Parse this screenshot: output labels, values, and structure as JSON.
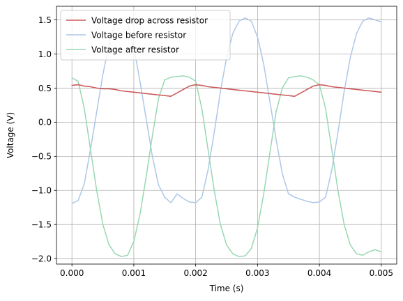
{
  "chart_data": {
    "type": "line",
    "xlabel": "Time (s)",
    "ylabel": "Voltage (V)",
    "xlim": [
      -0.00025,
      0.00525
    ],
    "ylim": [
      -2.08,
      1.7
    ],
    "xticks": [
      0.0,
      0.001,
      0.002,
      0.003,
      0.004,
      0.005
    ],
    "xtick_labels": [
      "0.000",
      "0.001",
      "0.002",
      "0.003",
      "0.004",
      "0.005"
    ],
    "yticks": [
      -2.0,
      -1.5,
      -1.0,
      -0.5,
      0.0,
      0.5,
      1.0,
      1.5
    ],
    "ytick_labels": [
      "−2.0",
      "−1.5",
      "−1.0",
      "−0.5",
      "0.0",
      "0.5",
      "1.0",
      "1.5"
    ],
    "grid": true,
    "legend_position": "upper-left",
    "series": [
      {
        "name": "Voltage drop across resistor",
        "color": "#cd5c5c",
        "x": [
          0.0,
          0.0001,
          0.0002,
          0.0003,
          0.0004,
          0.0005,
          0.0006,
          0.0007,
          0.0008,
          0.0009,
          0.001,
          0.0011,
          0.0012,
          0.0013,
          0.0014,
          0.0015,
          0.0016,
          0.0017,
          0.0018,
          0.0019,
          0.002,
          0.0021,
          0.0022,
          0.0023,
          0.0024,
          0.0025,
          0.0026,
          0.0027,
          0.0028,
          0.0029,
          0.003,
          0.0031,
          0.0032,
          0.0033,
          0.0034,
          0.0035,
          0.0036,
          0.0037,
          0.0038,
          0.0039,
          0.004,
          0.0041,
          0.0042,
          0.0043,
          0.0044,
          0.0045,
          0.0046,
          0.0047,
          0.0048,
          0.0049,
          0.005
        ],
        "y": [
          0.54,
          0.55,
          0.53,
          0.52,
          0.5,
          0.49,
          0.49,
          0.48,
          0.46,
          0.45,
          0.44,
          0.43,
          0.42,
          0.41,
          0.4,
          0.39,
          0.38,
          0.43,
          0.48,
          0.53,
          0.55,
          0.54,
          0.52,
          0.51,
          0.5,
          0.49,
          0.48,
          0.47,
          0.46,
          0.45,
          0.44,
          0.43,
          0.42,
          0.41,
          0.4,
          0.39,
          0.38,
          0.43,
          0.48,
          0.53,
          0.55,
          0.54,
          0.52,
          0.51,
          0.5,
          0.49,
          0.48,
          0.47,
          0.46,
          0.45,
          0.44
        ]
      },
      {
        "name": "Voltage before resistor",
        "color": "#aec7e8",
        "x": [
          0.0,
          0.0001,
          0.0002,
          0.0003,
          0.0004,
          0.0005,
          0.0006,
          0.0007,
          0.0008,
          0.0009,
          0.001,
          0.0011,
          0.0012,
          0.0013,
          0.0014,
          0.0015,
          0.0016,
          0.0017,
          0.0018,
          0.0019,
          0.002,
          0.0021,
          0.0022,
          0.0023,
          0.0024,
          0.0025,
          0.0026,
          0.0027,
          0.0028,
          0.0029,
          0.003,
          0.0031,
          0.0032,
          0.0033,
          0.0034,
          0.0035,
          0.0036,
          0.0037,
          0.0038,
          0.0039,
          0.004,
          0.0041,
          0.0042,
          0.0043,
          0.0044,
          0.0045,
          0.0046,
          0.0047,
          0.0048,
          0.0049,
          0.005
        ],
        "y": [
          -1.19,
          -1.15,
          -0.9,
          -0.4,
          0.15,
          0.7,
          1.15,
          1.45,
          1.53,
          1.45,
          1.1,
          0.6,
          0.05,
          -0.5,
          -0.92,
          -1.1,
          -1.18,
          -1.05,
          -1.12,
          -1.17,
          -1.18,
          -1.1,
          -0.7,
          -0.15,
          0.45,
          0.95,
          1.3,
          1.48,
          1.53,
          1.48,
          1.25,
          0.85,
          0.3,
          -0.25,
          -0.75,
          -1.05,
          -1.1,
          -1.13,
          -1.16,
          -1.18,
          -1.17,
          -1.1,
          -0.7,
          -0.15,
          0.45,
          0.95,
          1.3,
          1.48,
          1.53,
          1.5,
          1.47
        ]
      },
      {
        "name": "Voltage after resistor",
        "color": "#98d8b2",
        "x": [
          0.0,
          0.0001,
          0.0002,
          0.0003,
          0.0004,
          0.0005,
          0.0006,
          0.0007,
          0.0008,
          0.0009,
          0.001,
          0.0011,
          0.0012,
          0.0013,
          0.0014,
          0.0015,
          0.0016,
          0.0017,
          0.0018,
          0.0019,
          0.002,
          0.0021,
          0.0022,
          0.0023,
          0.0024,
          0.0025,
          0.0026,
          0.0027,
          0.0028,
          0.0029,
          0.003,
          0.0031,
          0.0032,
          0.0033,
          0.0034,
          0.0035,
          0.0036,
          0.0037,
          0.0038,
          0.0039,
          0.004,
          0.0041,
          0.0042,
          0.0043,
          0.0044,
          0.0045,
          0.0046,
          0.0047,
          0.0048,
          0.0049,
          0.005
        ],
        "y": [
          0.65,
          0.6,
          0.2,
          -0.4,
          -1.0,
          -1.5,
          -1.8,
          -1.93,
          -1.97,
          -1.95,
          -1.75,
          -1.35,
          -0.8,
          -0.2,
          0.35,
          0.62,
          0.66,
          0.67,
          0.68,
          0.66,
          0.6,
          0.2,
          -0.4,
          -1.0,
          -1.5,
          -1.8,
          -1.93,
          -1.97,
          -1.96,
          -1.85,
          -1.55,
          -1.05,
          -0.45,
          0.15,
          0.5,
          0.65,
          0.67,
          0.68,
          0.66,
          0.62,
          0.55,
          0.2,
          -0.4,
          -1.0,
          -1.5,
          -1.8,
          -1.93,
          -1.95,
          -1.9,
          -1.87,
          -1.9
        ]
      }
    ]
  }
}
